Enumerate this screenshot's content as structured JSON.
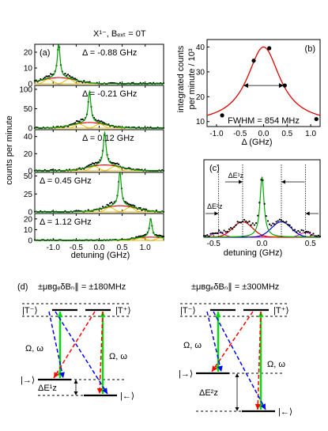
{
  "figure": {
    "top_title": "X¹⁻, Bₑₓₜ = 0T",
    "panel_a": {
      "tag": "(a)",
      "ylabel": "counts per minute",
      "xlabel": "detuning (GHz)",
      "xticks": [
        "-1.0",
        "-0.5",
        "0.0",
        "0.5",
        "1.0"
      ],
      "subpanels": [
        {
          "delta": "Δ = -0.88 GHz",
          "yticks": [
            "0",
            "10",
            "20"
          ],
          "ymax": 25,
          "peak_x": -0.88,
          "peak_h": 22
        },
        {
          "delta": "Δ = -0.21 GHz",
          "yticks": [
            "0",
            "50",
            "100"
          ],
          "ymax": 110,
          "peak_x": -0.21,
          "peak_h": 80
        },
        {
          "delta": "Δ = 0.12 GHz",
          "yticks": [
            "0",
            "20",
            "40"
          ],
          "ymax": 48,
          "peak_x": 0.12,
          "peak_h": 38
        },
        {
          "delta": "Δ = 0.45 GHz",
          "yticks": [
            "0",
            "25",
            "50"
          ],
          "ymax": 55,
          "peak_x": 0.45,
          "peak_h": 48
        },
        {
          "delta": "Δ = 1.12 GHz",
          "yticks": [
            "0",
            "10",
            "20"
          ],
          "ymax": 25,
          "peak_x": 1.12,
          "peak_h": 17
        }
      ]
    },
    "panel_b": {
      "tag": "(b)",
      "ylabel_line1": "integrated counts",
      "ylabel_line2": "per minute / 10³",
      "xlabel": "Δ (GHz)",
      "xticks": [
        "-1.0",
        "-0.5",
        "0.0",
        "0.5",
        "1.0"
      ],
      "yticks": [
        "10",
        "20",
        "30",
        "40"
      ],
      "fwhm_label": "FWHM = 854 MHz"
    },
    "panel_c": {
      "tag": "(c)",
      "xlabel": "detuning (GHz)",
      "xticks": [
        "-0.5",
        "0.0",
        "0.5"
      ],
      "label_e1": "ΔE¹ᴢ",
      "label_e2": "ΔE²ᴢ"
    },
    "panel_d": {
      "tag": "(d)",
      "left_title": "±μʙgₑδBₙ∥ = ±180MHz",
      "right_title": "±μʙgₑδBₙ∥ = ±300MHz",
      "t_minus": "|T⁻⟩",
      "t_plus": "|T⁺⟩",
      "right_state": "|→⟩",
      "left_state": "|←⟩",
      "omega": "Ω, ω",
      "dez1": "ΔE¹ᴢ",
      "dez2": "ΔE²ᴢ"
    }
  },
  "chart_data": [
    {
      "type": "line",
      "title": "X¹⁻, Bₑₓₜ = 0T",
      "panel": "(a)",
      "xlabel": "detuning (GHz)",
      "ylabel": "counts per minute",
      "xlim": [
        -1.4,
        1.4
      ],
      "series": [
        {
          "name": "Δ = -0.88 GHz",
          "peak_x": -0.88,
          "peak_y": 22
        },
        {
          "name": "Δ = -0.21 GHz",
          "peak_x": -0.21,
          "peak_y": 80
        },
        {
          "name": "Δ = 0.12 GHz",
          "peak_x": 0.12,
          "peak_y": 38
        },
        {
          "name": "Δ = 0.45 GHz",
          "peak_x": 0.45,
          "peak_y": 48
        },
        {
          "name": "Δ = 1.12 GHz",
          "peak_x": 1.12,
          "peak_y": 17
        }
      ]
    },
    {
      "type": "scatter",
      "panel": "(b)",
      "xlabel": "Δ (GHz)",
      "ylabel": "integrated counts per minute / 10³",
      "xlim": [
        -1.2,
        1.2
      ],
      "ylim": [
        8,
        43
      ],
      "x": [
        -0.88,
        -0.21,
        0.12,
        0.45,
        1.12
      ],
      "y": [
        12.5,
        34.5,
        39.5,
        24.5,
        11
      ],
      "fit_center": 0.0,
      "fit_peak": 40,
      "fit_fwhm": 0.854,
      "fwhm_label": "FWHM = 854 MHz"
    },
    {
      "type": "line",
      "panel": "(c)",
      "xlabel": "detuning (GHz)",
      "xlim": [
        -0.6,
        0.6
      ],
      "components": [
        {
          "center": -0.2,
          "color": "#e00000"
        },
        {
          "center": 0.0,
          "color": "#00aa00"
        },
        {
          "center": 0.2,
          "color": "#0000dd"
        },
        {
          "center": -0.45,
          "color": "#cc00cc"
        },
        {
          "center": 0.45,
          "color": "#cc00cc"
        }
      ]
    }
  ]
}
